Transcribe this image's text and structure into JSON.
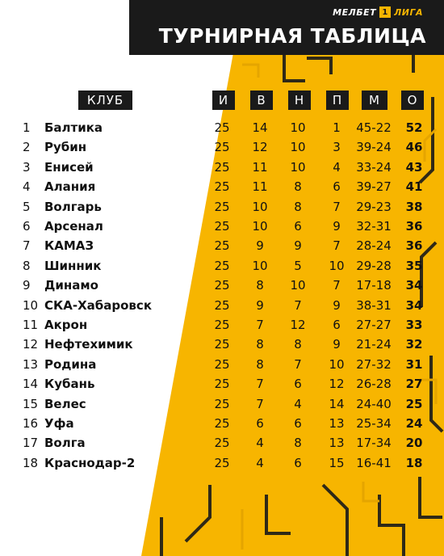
{
  "brand": {
    "part1": "МЕЛБЕТ",
    "logo": "1",
    "part2": "ЛИГА"
  },
  "title": "ТУРНИРНАЯ ТАБЛИЦА",
  "columns": {
    "club": "КЛУБ",
    "games": "И",
    "wins": "В",
    "draws": "Н",
    "losses": "П",
    "goals": "М",
    "points": "О"
  },
  "colors": {
    "accent": "#f7b500",
    "dark": "#1a1a1a",
    "text": "#111111"
  },
  "rows": [
    {
      "pos": "1",
      "club": "Балтика",
      "g": "25",
      "w": "14",
      "d": "10",
      "l": "1",
      "gd": "45-22",
      "pts": "52"
    },
    {
      "pos": "2",
      "club": "Рубин",
      "g": "25",
      "w": "12",
      "d": "10",
      "l": "3",
      "gd": "39-24",
      "pts": "46"
    },
    {
      "pos": "3",
      "club": "Енисей",
      "g": "25",
      "w": "11",
      "d": "10",
      "l": "4",
      "gd": "33-24",
      "pts": "43"
    },
    {
      "pos": "4",
      "club": "Алания",
      "g": "25",
      "w": "11",
      "d": "8",
      "l": "6",
      "gd": "39-27",
      "pts": "41"
    },
    {
      "pos": "5",
      "club": "Волгарь",
      "g": "25",
      "w": "10",
      "d": "8",
      "l": "7",
      "gd": "29-23",
      "pts": "38"
    },
    {
      "pos": "6",
      "club": "Арсенал",
      "g": "25",
      "w": "10",
      "d": "6",
      "l": "9",
      "gd": "32-31",
      "pts": "36"
    },
    {
      "pos": "7",
      "club": "КАМАЗ",
      "g": "25",
      "w": "9",
      "d": "9",
      "l": "7",
      "gd": "28-24",
      "pts": "36"
    },
    {
      "pos": "8",
      "club": "Шинник",
      "g": "25",
      "w": "10",
      "d": "5",
      "l": "10",
      "gd": "29-28",
      "pts": "35"
    },
    {
      "pos": "9",
      "club": "Динамо",
      "g": "25",
      "w": "8",
      "d": "10",
      "l": "7",
      "gd": "17-18",
      "pts": "34"
    },
    {
      "pos": "10",
      "club": "СКА-Хабаровск",
      "g": "25",
      "w": "9",
      "d": "7",
      "l": "9",
      "gd": "38-31",
      "pts": "34"
    },
    {
      "pos": "11",
      "club": "Акрон",
      "g": "25",
      "w": "7",
      "d": "12",
      "l": "6",
      "gd": "27-27",
      "pts": "33"
    },
    {
      "pos": "12",
      "club": "Нефтехимик",
      "g": "25",
      "w": "8",
      "d": "8",
      "l": "9",
      "gd": "21-24",
      "pts": "32"
    },
    {
      "pos": "13",
      "club": "Родина",
      "g": "25",
      "w": "8",
      "d": "7",
      "l": "10",
      "gd": "27-32",
      "pts": "31"
    },
    {
      "pos": "14",
      "club": "Кубань",
      "g": "25",
      "w": "7",
      "d": "6",
      "l": "12",
      "gd": "26-28",
      "pts": "27"
    },
    {
      "pos": "15",
      "club": "Велес",
      "g": "25",
      "w": "7",
      "d": "4",
      "l": "14",
      "gd": "24-40",
      "pts": "25"
    },
    {
      "pos": "16",
      "club": "Уфа",
      "g": "25",
      "w": "6",
      "d": "6",
      "l": "13",
      "gd": "25-34",
      "pts": "24"
    },
    {
      "pos": "17",
      "club": "Волга",
      "g": "25",
      "w": "4",
      "d": "8",
      "l": "13",
      "gd": "17-34",
      "pts": "20"
    },
    {
      "pos": "18",
      "club": "Краснодар-2",
      "g": "25",
      "w": "4",
      "d": "6",
      "l": "15",
      "gd": "16-41",
      "pts": "18"
    }
  ]
}
